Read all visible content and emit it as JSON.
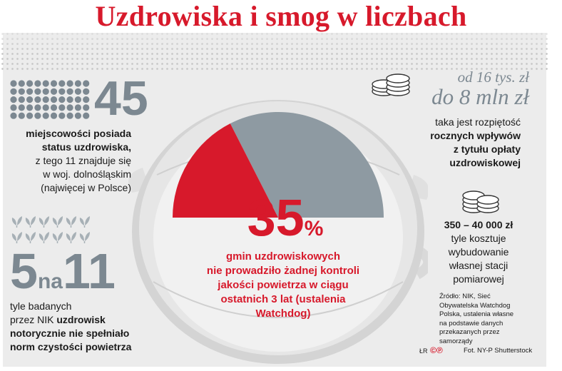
{
  "title": "Uzdrowiska i smog w liczbach",
  "stat_spas": {
    "number": "45",
    "line1": "miejscowości posiada",
    "line2": "status uzdrowiska,",
    "line3": "z tego 11 znajduje się",
    "line4": "w woj. dolnośląskim",
    "line5": "(najwięcej w Polsce)"
  },
  "stat_ratio": {
    "left": "5",
    "mid": "na",
    "right": "11",
    "line1": "tyle badanych",
    "line2_normal": "przez NIK ",
    "line2_bold": "uzdrowisk",
    "line3": "notorycznie nie spełniało",
    "line4": "norm czystości powietrza"
  },
  "stat_center": {
    "number": "35",
    "unit": "%",
    "line1": "gmin uzdrowiskowych",
    "line2": "nie prowadziło żadnej kontroli",
    "line3": "jakości powietrza w ciągu",
    "line4": "ostatnich 3 lat (ustalenia",
    "line5": "Watchdog)",
    "gauge_fraction": 0.35
  },
  "stat_fee": {
    "from": "od 16 tys. zł",
    "to": "do 8 mln zł",
    "line1": "taka jest rozpiętość",
    "line2": "rocznych wpływów",
    "line3": "z tytułu opłaty",
    "line4": "uzdrowiskowej"
  },
  "stat_station": {
    "value": "350 – 40 000 zł",
    "line1": "tyle kosztuje",
    "line2": "wybudowanie",
    "line3": "własnej stacji",
    "line4": "pomiarowej"
  },
  "source": {
    "line1": "Źródło: NIK, Sieć",
    "line2": "Obywatelska Watchdog",
    "line3": "Polska, ustalenia własne",
    "line4": "na podstawie danych",
    "line5": "przekazanych przez",
    "line6": "samorządy"
  },
  "credits": {
    "author": "ŁR",
    "copyright": "©℗",
    "photo": "Fot. NY-P Shutterstock"
  },
  "colors": {
    "red": "#d7192b",
    "grey_number": "#7c8891",
    "gauge_grey": "#8e9aa2",
    "panel": "#ececec"
  },
  "icons": {
    "spa_grid": "person-dot-grid-icon",
    "leaves": "leaf-sprout-icon",
    "coins": "coin-stack-icon"
  }
}
